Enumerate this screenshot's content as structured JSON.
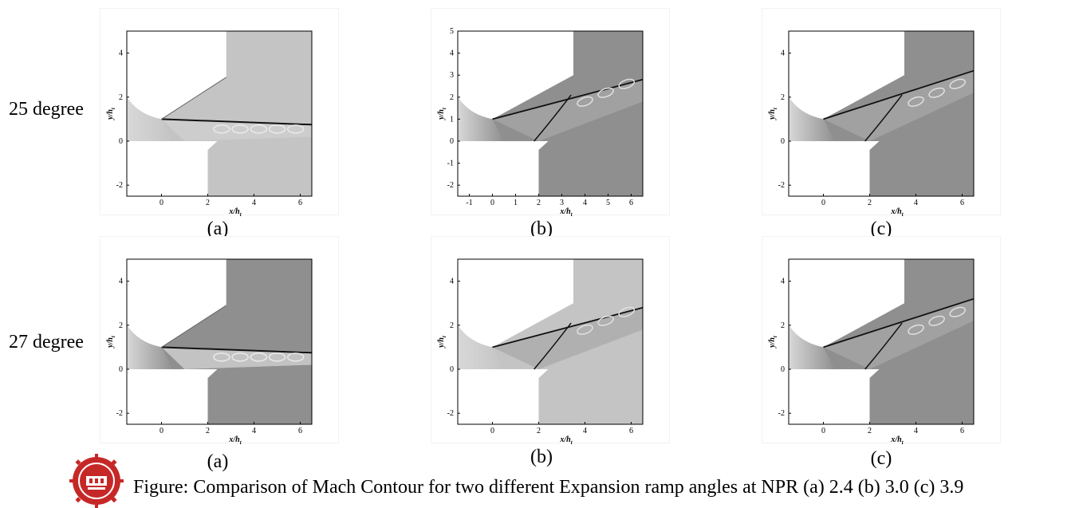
{
  "rows": [
    {
      "label": "25 degree"
    },
    {
      "label": "27 degree"
    }
  ],
  "sub_captions": [
    "(a)",
    "(b)",
    "(c)"
  ],
  "axes": {
    "xlabel": "x/h",
    "xlabel_sub": "t",
    "ylabel": "y/h",
    "ylabel_sub": "t"
  },
  "panels": [
    {
      "id": "a",
      "xticks": [
        "0",
        "2",
        "4",
        "6"
      ],
      "yticks": [
        "-2",
        "0",
        "2",
        "4"
      ]
    },
    {
      "id": "b",
      "xticks": [
        "-1",
        "0",
        "1",
        "2",
        "3",
        "4",
        "5",
        "6"
      ],
      "yticks": [
        "-2",
        "-1",
        "0",
        "1",
        "2",
        "3",
        "4",
        "5"
      ]
    },
    {
      "id": "c",
      "xticks": [
        "0",
        "2",
        "4",
        "6"
      ],
      "yticks": [
        "-2",
        "0",
        "2",
        "4"
      ]
    },
    {
      "id": "a2",
      "xticks": [
        "0",
        "2",
        "4",
        "6"
      ],
      "yticks": [
        "-2",
        "0",
        "2",
        "4"
      ]
    },
    {
      "id": "b2",
      "xticks": [
        "0",
        "2",
        "4",
        "6"
      ],
      "yticks": [
        "-2",
        "0",
        "2",
        "4"
      ]
    },
    {
      "id": "c2",
      "xticks": [
        "0",
        "2",
        "4",
        "6"
      ],
      "yticks": [
        "-2",
        "0",
        "2",
        "4"
      ]
    }
  ],
  "caption": "Figure: Comparison of Mach Contour for two different Expansion ramp angles at NPR (a) 2.4 (b) 3.0 (c) 3.9",
  "colors": {
    "flow_light": "#c4c4c4",
    "flow_mid": "#b0b0b0",
    "flow_dark": "#8f8f8f",
    "shock": "#111111",
    "logo_red": "#c62828"
  }
}
